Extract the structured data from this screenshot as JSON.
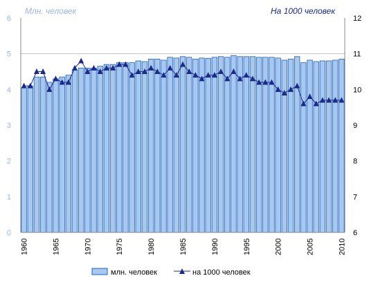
{
  "chart_data": {
    "type": "bar",
    "y_left_title": "Млн. человек",
    "y_right_title": "На 1000 человек",
    "y_left_range": [
      0,
      6
    ],
    "y_left_ticks": [
      "0",
      "1",
      "2",
      "3",
      "4",
      "5",
      "6"
    ],
    "y_right_range": [
      6,
      12
    ],
    "y_right_ticks": [
      "6",
      "7",
      "8",
      "9",
      "10",
      "11",
      "12"
    ],
    "x": [
      1960,
      1961,
      1962,
      1963,
      1964,
      1965,
      1966,
      1967,
      1968,
      1969,
      1970,
      1971,
      1972,
      1973,
      1974,
      1975,
      1976,
      1977,
      1978,
      1979,
      1980,
      1981,
      1982,
      1983,
      1984,
      1985,
      1986,
      1987,
      1988,
      1989,
      1990,
      1991,
      1992,
      1993,
      1994,
      1995,
      1996,
      1997,
      1998,
      1999,
      2000,
      2001,
      2002,
      2003,
      2004,
      2005,
      2006,
      2007,
      2008,
      2009,
      2010
    ],
    "x_tick_labels": [
      "1960",
      "1965",
      "1970",
      "1975",
      "1980",
      "1985",
      "1990",
      "1995",
      "2000",
      "2005",
      "2010"
    ],
    "grid": "horizontal line at 5 on left axis",
    "legend_position": "bottom",
    "colors": {
      "bar_fill": "#a7c8f0",
      "bar_stroke": "#1f5fb8",
      "line": "#1a2a8c",
      "marker": "#1a2a8c",
      "axis_text": "#9bb6d8",
      "right_title": "#1a2a8c",
      "grid": "#c0c0c0",
      "frame": "#8a8a8a"
    },
    "series": [
      {
        "name": "млн. человек",
        "type": "bar",
        "axis": "left",
        "values": [
          4.05,
          4.1,
          4.35,
          4.35,
          4.2,
          4.3,
          4.35,
          4.4,
          4.55,
          4.6,
          4.6,
          4.6,
          4.65,
          4.7,
          4.7,
          4.75,
          4.75,
          4.75,
          4.8,
          4.78,
          4.85,
          4.85,
          4.82,
          4.9,
          4.88,
          4.92,
          4.9,
          4.85,
          4.88,
          4.87,
          4.9,
          4.92,
          4.9,
          4.95,
          4.92,
          4.92,
          4.92,
          4.9,
          4.9,
          4.9,
          4.88,
          4.82,
          4.85,
          4.92,
          4.75,
          4.82,
          4.78,
          4.8,
          4.8,
          4.82,
          4.85
        ]
      },
      {
        "name": "на 1000 человек",
        "type": "line",
        "axis": "right",
        "values": [
          10.1,
          10.1,
          10.5,
          10.5,
          10.0,
          10.3,
          10.2,
          10.2,
          10.6,
          10.8,
          10.5,
          10.6,
          10.5,
          10.6,
          10.6,
          10.7,
          10.7,
          10.4,
          10.5,
          10.5,
          10.6,
          10.5,
          10.4,
          10.6,
          10.4,
          10.7,
          10.5,
          10.4,
          10.3,
          10.4,
          10.4,
          10.5,
          10.3,
          10.5,
          10.3,
          10.4,
          10.3,
          10.2,
          10.2,
          10.2,
          10.0,
          9.9,
          10.0,
          10.1,
          9.6,
          9.8,
          9.6,
          9.7,
          9.7,
          9.7,
          9.7
        ]
      }
    ]
  }
}
